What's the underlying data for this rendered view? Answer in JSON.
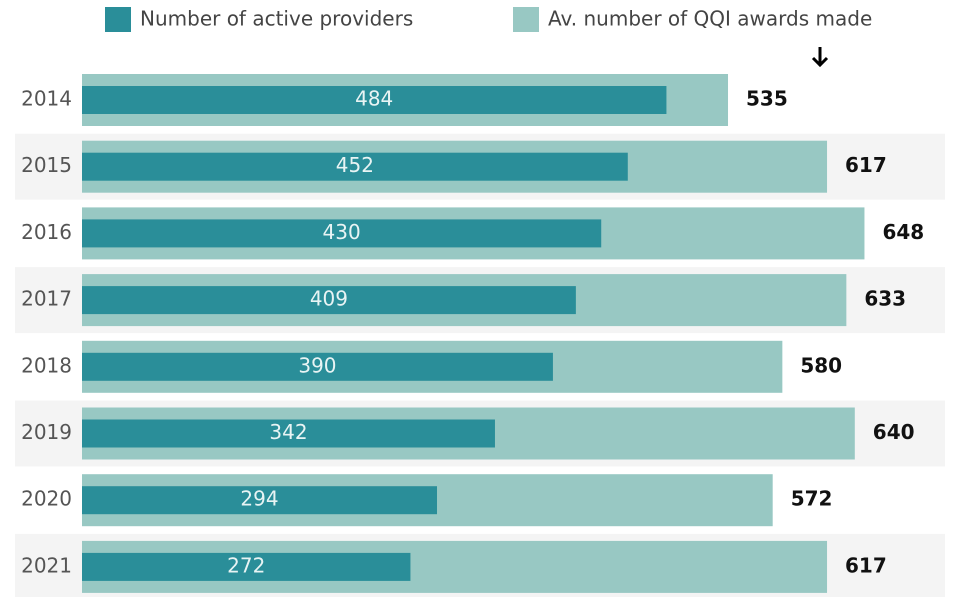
{
  "chart_data": {
    "type": "bar",
    "orientation": "horizontal",
    "categories": [
      "2014",
      "2015",
      "2016",
      "2017",
      "2018",
      "2019",
      "2020",
      "2021"
    ],
    "series": [
      {
        "name": "Number of active providers",
        "color": "#2a8e99",
        "values": [
          484,
          452,
          430,
          409,
          390,
          342,
          294,
          272
        ]
      },
      {
        "name": "Av. number of QQI awards made",
        "color": "#98c8c3",
        "values": [
          535,
          617,
          648,
          633,
          580,
          640,
          572,
          617
        ]
      }
    ]
  }
}
